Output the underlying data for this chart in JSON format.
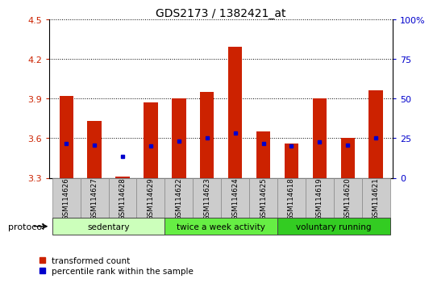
{
  "title": "GDS2173 / 1382421_at",
  "samples": [
    "GSM114626",
    "GSM114627",
    "GSM114628",
    "GSM114629",
    "GSM114622",
    "GSM114623",
    "GSM114624",
    "GSM114625",
    "GSM114618",
    "GSM114619",
    "GSM114620",
    "GSM114621"
  ],
  "transformed_count": [
    3.92,
    3.73,
    3.31,
    3.87,
    3.9,
    3.95,
    4.29,
    3.65,
    3.56,
    3.9,
    3.6,
    3.96
  ],
  "percentile_rank": [
    3.56,
    3.55,
    3.46,
    3.54,
    3.58,
    3.6,
    3.64,
    3.56,
    3.54,
    3.57,
    3.55,
    3.6
  ],
  "bar_bottom": 3.3,
  "ylim_left": [
    3.3,
    4.5
  ],
  "ylim_right": [
    0,
    100
  ],
  "yticks_left": [
    3.3,
    3.6,
    3.9,
    4.2,
    4.5
  ],
  "yticks_right": [
    0,
    25,
    50,
    75,
    100
  ],
  "ytick_labels_right": [
    "0",
    "25",
    "50",
    "75",
    "100%"
  ],
  "groups": [
    {
      "label": "sedentary",
      "indices": [
        0,
        1,
        2,
        3
      ],
      "color": "#ccffbb"
    },
    {
      "label": "twice a week activity",
      "indices": [
        4,
        5,
        6,
        7
      ],
      "color": "#66ee44"
    },
    {
      "label": "voluntary running",
      "indices": [
        8,
        9,
        10,
        11
      ],
      "color": "#33cc22"
    }
  ],
  "bar_color": "#cc2200",
  "percentile_color": "#0000cc",
  "tick_color_left": "#cc2200",
  "tick_color_right": "#0000cc",
  "bar_width": 0.5,
  "protocol_label": "protocol",
  "sample_cell_color": "#cccccc",
  "legend_items": [
    {
      "label": "transformed count",
      "color": "#cc2200"
    },
    {
      "label": "percentile rank within the sample",
      "color": "#0000cc"
    }
  ]
}
